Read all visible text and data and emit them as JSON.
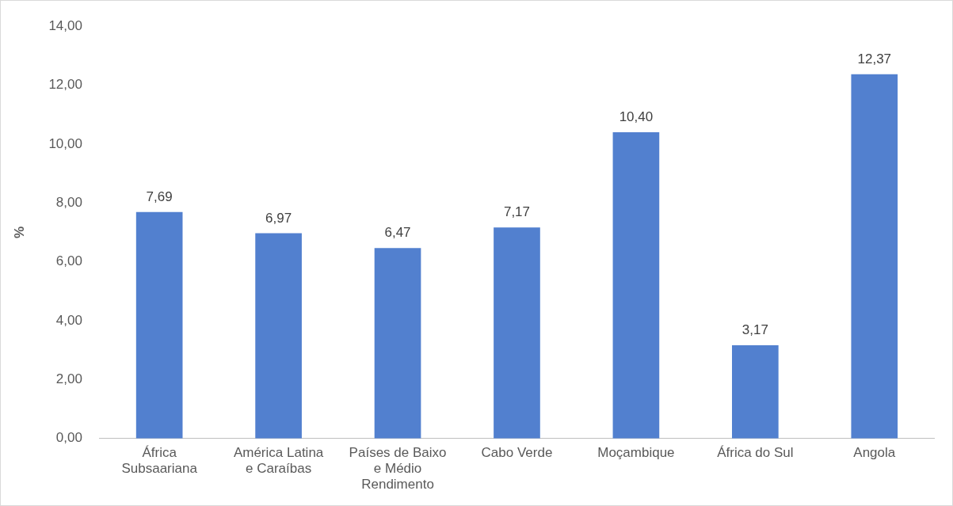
{
  "chart_data": {
    "type": "bar",
    "ylabel": "%",
    "categories": [
      "África Subsaariana",
      "América Latina e Caraíbas",
      "Países de Baixo e Médio Rendimento",
      "Cabo Verde",
      "Moçambique",
      "África do Sul",
      "Angola"
    ],
    "values": [
      7.69,
      6.97,
      6.47,
      7.17,
      10.4,
      3.17,
      12.37
    ],
    "value_labels": [
      "7,69",
      "6,97",
      "6,47",
      "7,17",
      "10,40",
      "3,17",
      "12,37"
    ],
    "color": "#5280cf",
    "ylim": [
      0,
      14
    ],
    "yticks": [
      {
        "value": 0,
        "label": "0,00"
      },
      {
        "value": 2,
        "label": "2,00"
      },
      {
        "value": 4,
        "label": "4,00"
      },
      {
        "value": 6,
        "label": "6,00"
      },
      {
        "value": 8,
        "label": "8,00"
      },
      {
        "value": 10,
        "label": "10,00"
      },
      {
        "value": 12,
        "label": "12,00"
      },
      {
        "value": 14,
        "label": "14,00"
      }
    ],
    "grid": false,
    "legend": false
  }
}
